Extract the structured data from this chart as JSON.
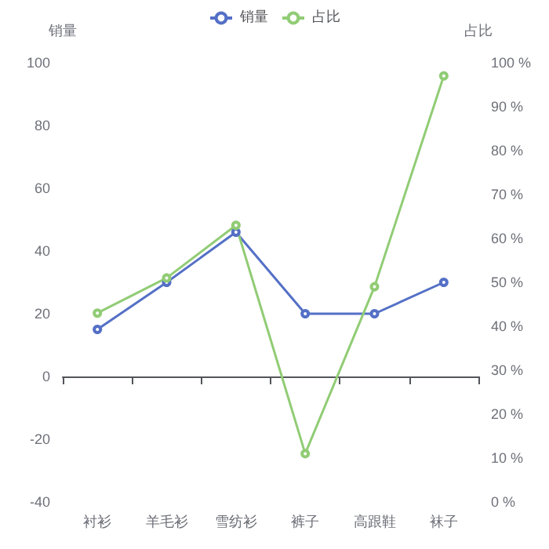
{
  "chart_data": {
    "type": "line",
    "categories": [
      "衬衫",
      "羊毛衫",
      "雪纺衫",
      "裤子",
      "高跟鞋",
      "袜子"
    ],
    "ylabel": "销量",
    "y2label": "占比",
    "series": [
      {
        "name": "销量",
        "color": "#5470c6",
        "values": [
          15,
          30,
          46,
          20,
          20,
          30
        ]
      },
      {
        "name": "占比",
        "color": "#91cc75",
        "axis": "y2",
        "values": [
          43,
          51,
          63,
          11,
          49,
          97
        ]
      }
    ],
    "ylim": [
      -40,
      100
    ],
    "yticks": [
      -40,
      -20,
      0,
      20,
      40,
      60,
      80,
      100
    ],
    "y2lim": [
      0,
      100
    ],
    "y2ticks": [
      {
        "value": 0,
        "label": "0 %"
      },
      {
        "value": 10,
        "label": "10 %"
      },
      {
        "value": 20,
        "label": "20 %"
      },
      {
        "value": 30,
        "label": "30 %"
      },
      {
        "value": 40,
        "label": "40 %"
      },
      {
        "value": 50,
        "label": "50 %"
      },
      {
        "value": 60,
        "label": "60 %"
      },
      {
        "value": 70,
        "label": "70 %"
      },
      {
        "value": 80,
        "label": "80 %"
      },
      {
        "value": 90,
        "label": "90 %"
      },
      {
        "value": 100,
        "label": "100 %"
      }
    ],
    "legend": "top",
    "marker": "circle"
  }
}
